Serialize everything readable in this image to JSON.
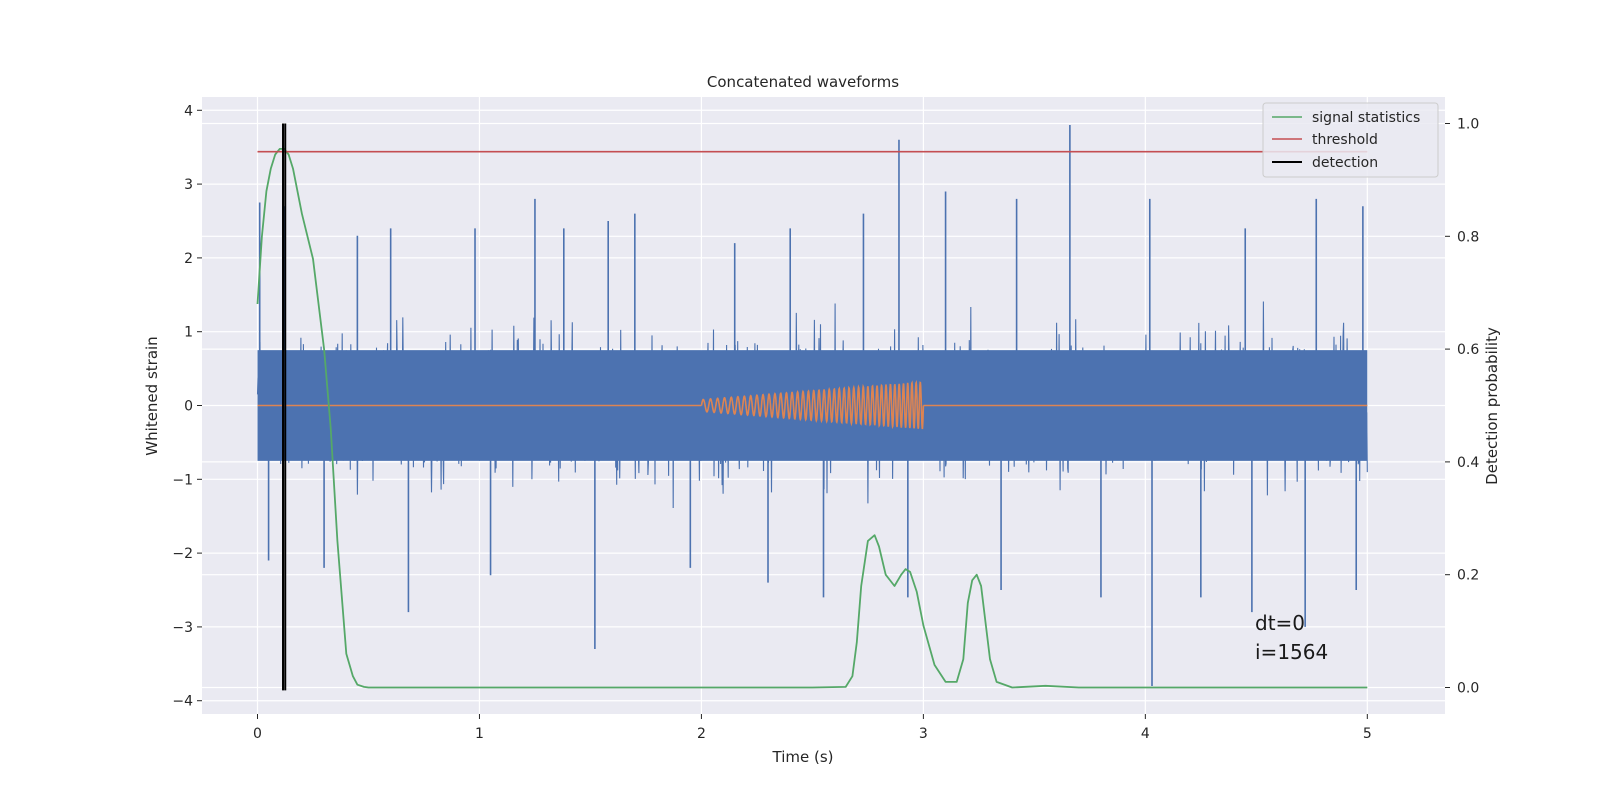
{
  "chart_data": {
    "type": "line",
    "title": "Concatenated waveforms",
    "xlabel": "Time (s)",
    "ylabel": "Whitened strain",
    "y2label": "Detection probability",
    "xlim": [
      -0.25,
      5.35
    ],
    "ylim": [
      -4.18,
      4.18
    ],
    "y2lim": [
      -0.047,
      1.047
    ],
    "xticks": [
      0,
      1,
      2,
      3,
      4,
      5
    ],
    "yticks": [
      -4,
      -3,
      -2,
      -1,
      0,
      1,
      2,
      3,
      4
    ],
    "y2ticks": [
      0.0,
      0.2,
      0.4,
      0.6,
      0.8,
      1.0
    ],
    "y2ticklabels": [
      "0.0",
      "0.2",
      "0.4",
      "0.6",
      "0.8",
      "1.0"
    ],
    "grid": true,
    "legend_position": "top-right",
    "colors": {
      "noise": "#4c72b0",
      "injection": "#dd8452",
      "statistics": "#55a868",
      "threshold": "#c44e52",
      "detection": "#000000",
      "background": "#eaeaf2",
      "grid": "#ffffff"
    },
    "series": [
      {
        "name": "",
        "role": "whitened-noise",
        "axis": "left",
        "x_range": [
          0,
          5
        ],
        "band": [
          -0.75,
          0.75
        ],
        "extremes_upper": [
          [
            0.01,
            2.75
          ],
          [
            0.12,
            2.7
          ],
          [
            0.45,
            2.3
          ],
          [
            0.6,
            2.4
          ],
          [
            0.98,
            2.4
          ],
          [
            1.25,
            2.8
          ],
          [
            1.38,
            2.4
          ],
          [
            1.58,
            2.5
          ],
          [
            1.7,
            2.6
          ],
          [
            2.15,
            2.2
          ],
          [
            2.4,
            2.4
          ],
          [
            2.73,
            2.6
          ],
          [
            2.89,
            3.6
          ],
          [
            3.1,
            2.9
          ],
          [
            3.42,
            2.8
          ],
          [
            3.66,
            3.8
          ],
          [
            4.02,
            2.8
          ],
          [
            4.45,
            2.4
          ],
          [
            4.77,
            2.8
          ],
          [
            4.98,
            2.7
          ]
        ],
        "extremes_lower": [
          [
            0.05,
            -2.1
          ],
          [
            0.3,
            -2.2
          ],
          [
            0.68,
            -2.8
          ],
          [
            1.05,
            -2.3
          ],
          [
            1.52,
            -3.3
          ],
          [
            1.95,
            -2.2
          ],
          [
            2.3,
            -2.4
          ],
          [
            2.55,
            -2.6
          ],
          [
            2.93,
            -2.6
          ],
          [
            3.35,
            -2.5
          ],
          [
            3.8,
            -2.6
          ],
          [
            4.03,
            -3.8
          ],
          [
            4.25,
            -2.6
          ],
          [
            4.48,
            -2.8
          ],
          [
            4.72,
            -3.0
          ],
          [
            4.95,
            -2.5
          ]
        ]
      },
      {
        "name": "",
        "role": "injected-chirp",
        "axis": "left",
        "flat_before": [
          0,
          2
        ],
        "chirp_range": [
          2,
          3
        ],
        "amplitude_start": 0.08,
        "amplitude_end": 0.32,
        "flat_after": [
          3,
          5
        ]
      },
      {
        "name": "signal statistics",
        "axis": "right",
        "x": [
          0.0,
          0.02,
          0.04,
          0.06,
          0.08,
          0.1,
          0.12,
          0.14,
          0.16,
          0.2,
          0.25,
          0.3,
          0.33,
          0.36,
          0.4,
          0.43,
          0.45,
          0.48,
          0.5,
          0.8,
          1.5,
          2.0,
          2.5,
          2.65,
          2.68,
          2.7,
          2.72,
          2.75,
          2.78,
          2.8,
          2.83,
          2.87,
          2.9,
          2.92,
          2.94,
          2.97,
          3.0,
          3.05,
          3.1,
          3.15,
          3.18,
          3.2,
          3.22,
          3.24,
          3.26,
          3.3,
          3.33,
          3.4,
          3.55,
          3.7,
          4.0,
          5.0
        ],
        "y": [
          0.68,
          0.8,
          0.88,
          0.92,
          0.945,
          0.955,
          0.955,
          0.945,
          0.92,
          0.84,
          0.76,
          0.6,
          0.46,
          0.26,
          0.06,
          0.02,
          0.005,
          0.001,
          0.0,
          0.0,
          0.0,
          0.0,
          0.0,
          0.001,
          0.02,
          0.08,
          0.18,
          0.26,
          0.27,
          0.25,
          0.2,
          0.18,
          0.2,
          0.21,
          0.205,
          0.17,
          0.11,
          0.04,
          0.01,
          0.01,
          0.05,
          0.15,
          0.19,
          0.2,
          0.18,
          0.05,
          0.01,
          0.0,
          0.003,
          0.0,
          0.0,
          0.0
        ]
      },
      {
        "name": "threshold",
        "axis": "right",
        "x": [
          0,
          5
        ],
        "y": [
          0.95,
          0.95
        ]
      },
      {
        "name": "detection",
        "axis": "right",
        "x": [
          0.115,
          0.125
        ],
        "ymin": -0.005,
        "ymax": 1.0
      }
    ],
    "annotations": [
      {
        "text": "dt=0",
        "x": 4.5,
        "y": -3.05
      },
      {
        "text": "i=1564",
        "x": 4.5,
        "y": -3.45
      }
    ]
  }
}
